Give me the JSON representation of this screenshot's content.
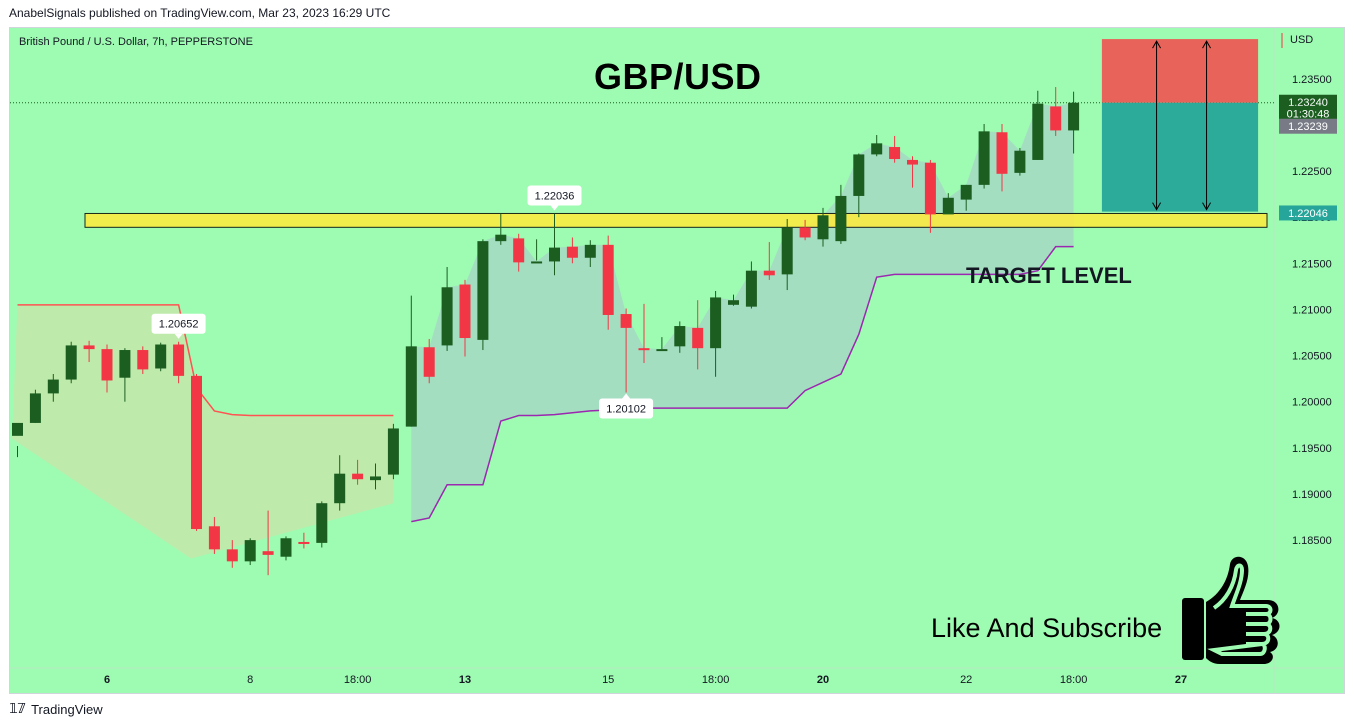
{
  "header": {
    "published": "AnabelSignals published on TradingView.com, Mar 23, 2023 16:29 UTC"
  },
  "footer": {
    "logo_label": "TradingView"
  },
  "colors": {
    "background": "#9efcb2",
    "up_candle": "#1b5e20",
    "down_candle": "#f23645",
    "upper_band": "#ff5252",
    "lower_band": "#9c27b0",
    "target_zone": "#ffeb3b",
    "stop_zone": "#ef5350",
    "profit_zone": "#26a69a"
  },
  "overlay": {
    "title": "GBP/USD",
    "target_label": "TARGET LEVEL",
    "subscribe_label": "Like And Subscribe",
    "icon": "thumbs-up-icon"
  },
  "chart_data": {
    "type": "candlestick",
    "symbol_label": "British Pound / U.S. Dollar, 7h, PEPPERSTONE",
    "currency": "USD",
    "ylim": [
      1.1745,
      1.2405
    ],
    "y_ticks": [
      "1.23500",
      "1.23000",
      "1.22500",
      "1.22000",
      "1.21500",
      "1.21000",
      "1.20500",
      "1.20000",
      "1.19500",
      "1.19000",
      "1.18500"
    ],
    "x_ticks": [
      {
        "label": "6",
        "bar": 5,
        "bold": true
      },
      {
        "label": "8",
        "bar": 13,
        "bold": false
      },
      {
        "label": "18:00",
        "bar": 19,
        "bold": false
      },
      {
        "label": "13",
        "bar": 25,
        "bold": true
      },
      {
        "label": "15",
        "bar": 33,
        "bold": false
      },
      {
        "label": "18:00",
        "bar": 39,
        "bold": false
      },
      {
        "label": "20",
        "bar": 45,
        "bold": true
      },
      {
        "label": "22",
        "bar": 53,
        "bold": false
      },
      {
        "label": "18:00",
        "bar": 59,
        "bold": false
      },
      {
        "label": "27",
        "bar": 65,
        "bold": true
      }
    ],
    "candles": [
      [
        1.1963,
        1.1977,
        1.1952,
        1.194
      ],
      [
        1.1977,
        1.2009,
        1.2013,
        1.1977
      ],
      [
        1.2009,
        1.2024,
        1.203,
        1.2
      ],
      [
        1.2024,
        1.2061,
        1.2065,
        1.202
      ],
      [
        1.2061,
        1.2057,
        1.2066,
        1.2043
      ],
      [
        1.2057,
        1.2023,
        1.2062,
        1.201
      ],
      [
        1.2026,
        1.2056,
        1.2058,
        1.2
      ],
      [
        1.2056,
        1.2035,
        1.206,
        1.203
      ],
      [
        1.2036,
        1.2062,
        1.2064,
        1.2033
      ],
      [
        1.2062,
        1.2028,
        1.2065,
        1.202
      ],
      [
        1.2028,
        1.1862,
        1.203,
        1.186
      ],
      [
        1.1865,
        1.184,
        1.1875,
        1.1835
      ],
      [
        1.184,
        1.1827,
        1.185,
        1.182
      ],
      [
        1.1827,
        1.185,
        1.1852,
        1.1823
      ],
      [
        1.1838,
        1.1834,
        1.1882,
        1.1812
      ],
      [
        1.1832,
        1.1852,
        1.1854,
        1.1828
      ],
      [
        1.1848,
        1.1846,
        1.1858,
        1.1841
      ],
      [
        1.1847,
        1.189,
        1.1892,
        1.1842
      ],
      [
        1.189,
        1.1922,
        1.1942,
        1.1882
      ],
      [
        1.1922,
        1.1916,
        1.1937,
        1.191
      ],
      [
        1.1915,
        1.1919,
        1.1933,
        1.1905
      ],
      [
        1.1921,
        1.1971,
        1.1976,
        1.1916
      ],
      [
        1.1973,
        1.206,
        1.2115,
        1.1973
      ],
      [
        1.2059,
        1.2027,
        1.2068,
        1.202
      ],
      [
        1.2061,
        1.2124,
        1.2146,
        1.2055
      ],
      [
        1.2127,
        1.2069,
        1.2132,
        1.2049
      ],
      [
        1.2067,
        1.2174,
        1.2176,
        1.2056
      ],
      [
        1.2174,
        1.2181,
        1.2204,
        1.217
      ],
      [
        1.2177,
        1.2151,
        1.2182,
        1.2141
      ],
      [
        1.2152,
        1.2152,
        1.2176,
        1.2153
      ],
      [
        1.2152,
        1.2167,
        1.2204,
        1.2137
      ],
      [
        1.2168,
        1.2156,
        1.2178,
        1.215
      ],
      [
        1.2156,
        1.217,
        1.2175,
        1.2146
      ],
      [
        1.217,
        1.2094,
        1.218,
        1.2078
      ],
      [
        1.2095,
        1.208,
        1.2101,
        1.201
      ],
      [
        1.2058,
        1.2056,
        1.2106,
        1.2042
      ],
      [
        1.2056,
        1.2057,
        1.207,
        1.2057
      ],
      [
        1.206,
        1.2082,
        1.2087,
        1.2053
      ],
      [
        1.208,
        1.2058,
        1.211,
        1.2035
      ],
      [
        1.2058,
        1.2113,
        1.212,
        1.2027
      ],
      [
        1.2105,
        1.211,
        1.2116,
        1.2104
      ],
      [
        1.2103,
        1.2142,
        1.2152,
        1.2101
      ],
      [
        1.2142,
        1.2137,
        1.2173,
        1.2132
      ],
      [
        1.2138,
        1.2189,
        1.2198,
        1.2121
      ],
      [
        1.2189,
        1.2178,
        1.2197,
        1.2175
      ],
      [
        1.2176,
        1.2202,
        1.221,
        1.2168
      ],
      [
        1.2174,
        1.2223,
        1.2235,
        1.2171
      ],
      [
        1.2223,
        1.2268,
        1.2269,
        1.22
      ],
      [
        1.2268,
        1.228,
        1.2289,
        1.2266
      ],
      [
        1.2276,
        1.2263,
        1.2288,
        1.2259
      ],
      [
        1.2262,
        1.2257,
        1.2266,
        1.2232
      ],
      [
        1.2259,
        1.2203,
        1.2262,
        1.2183
      ],
      [
        1.2203,
        1.2221,
        1.2226,
        1.2204
      ],
      [
        1.2219,
        1.2235,
        1.2235,
        1.2207
      ],
      [
        1.2235,
        1.2293,
        1.2301,
        1.2231
      ],
      [
        1.2292,
        1.2247,
        1.2301,
        1.2228
      ],
      [
        1.2248,
        1.2272,
        1.2275,
        1.2245
      ],
      [
        1.2262,
        1.2323,
        1.2337,
        1.2262
      ],
      [
        1.232,
        1.2294,
        1.2341,
        1.2288
      ],
      [
        1.2294,
        1.2324,
        1.2336,
        1.2269
      ]
    ],
    "upper_band": [
      1.2105,
      1.2105,
      1.2105,
      1.2105,
      1.2105,
      1.2105,
      1.2105,
      1.2105,
      1.2105,
      1.2105,
      1.2015,
      1.199,
      1.1986,
      1.1985,
      1.1985,
      1.1985,
      1.1985,
      1.1985,
      1.1985,
      1.1985,
      1.1985,
      1.1985
    ],
    "lower_band": [
      null,
      null,
      null,
      null,
      null,
      null,
      null,
      null,
      null,
      null,
      null,
      null,
      null,
      null,
      null,
      null,
      null,
      null,
      null,
      null,
      null,
      null,
      1.187,
      1.1874,
      1.191,
      1.191,
      1.191,
      1.1979,
      1.1985,
      1.1985,
      1.1986,
      1.1988,
      1.199,
      1.1991,
      1.1993,
      1.1993,
      1.1993,
      1.1993,
      1.1993,
      1.1993,
      1.1993,
      1.1993,
      1.1993,
      1.1993,
      1.2012,
      1.2021,
      1.203,
      1.2073,
      1.2135,
      1.2138,
      1.2138,
      1.2138,
      1.2138,
      1.2138,
      1.2138,
      1.2138,
      1.2138,
      1.2142,
      1.2168,
      1.2168
    ],
    "target_zone": {
      "top": 1.2204,
      "bottom": 1.2189
    },
    "position": {
      "entry": 1.2324,
      "stop": 1.2393,
      "target": 1.2206,
      "start_bar": 61,
      "end_bar": 69
    },
    "annotations": [
      {
        "text": "1.20652",
        "bar": 9,
        "price": 1.2065,
        "side": "above"
      },
      {
        "text": "1.22036",
        "bar": 30,
        "price": 1.2204,
        "side": "above"
      },
      {
        "text": "1.20102",
        "bar": 34,
        "price": 1.201,
        "side": "below"
      }
    ],
    "price_labels": [
      {
        "text": "1.23240",
        "price": 1.2324,
        "color": "#1b5e20"
      },
      {
        "text": "01:30:48",
        "price": 1.2312,
        "color": "#1b5e20"
      },
      {
        "text": "1.23239",
        "price": 1.2298,
        "color": "#787b86"
      },
      {
        "text": "1.22046",
        "price": 1.2204,
        "color": "#26a69a"
      }
    ]
  }
}
